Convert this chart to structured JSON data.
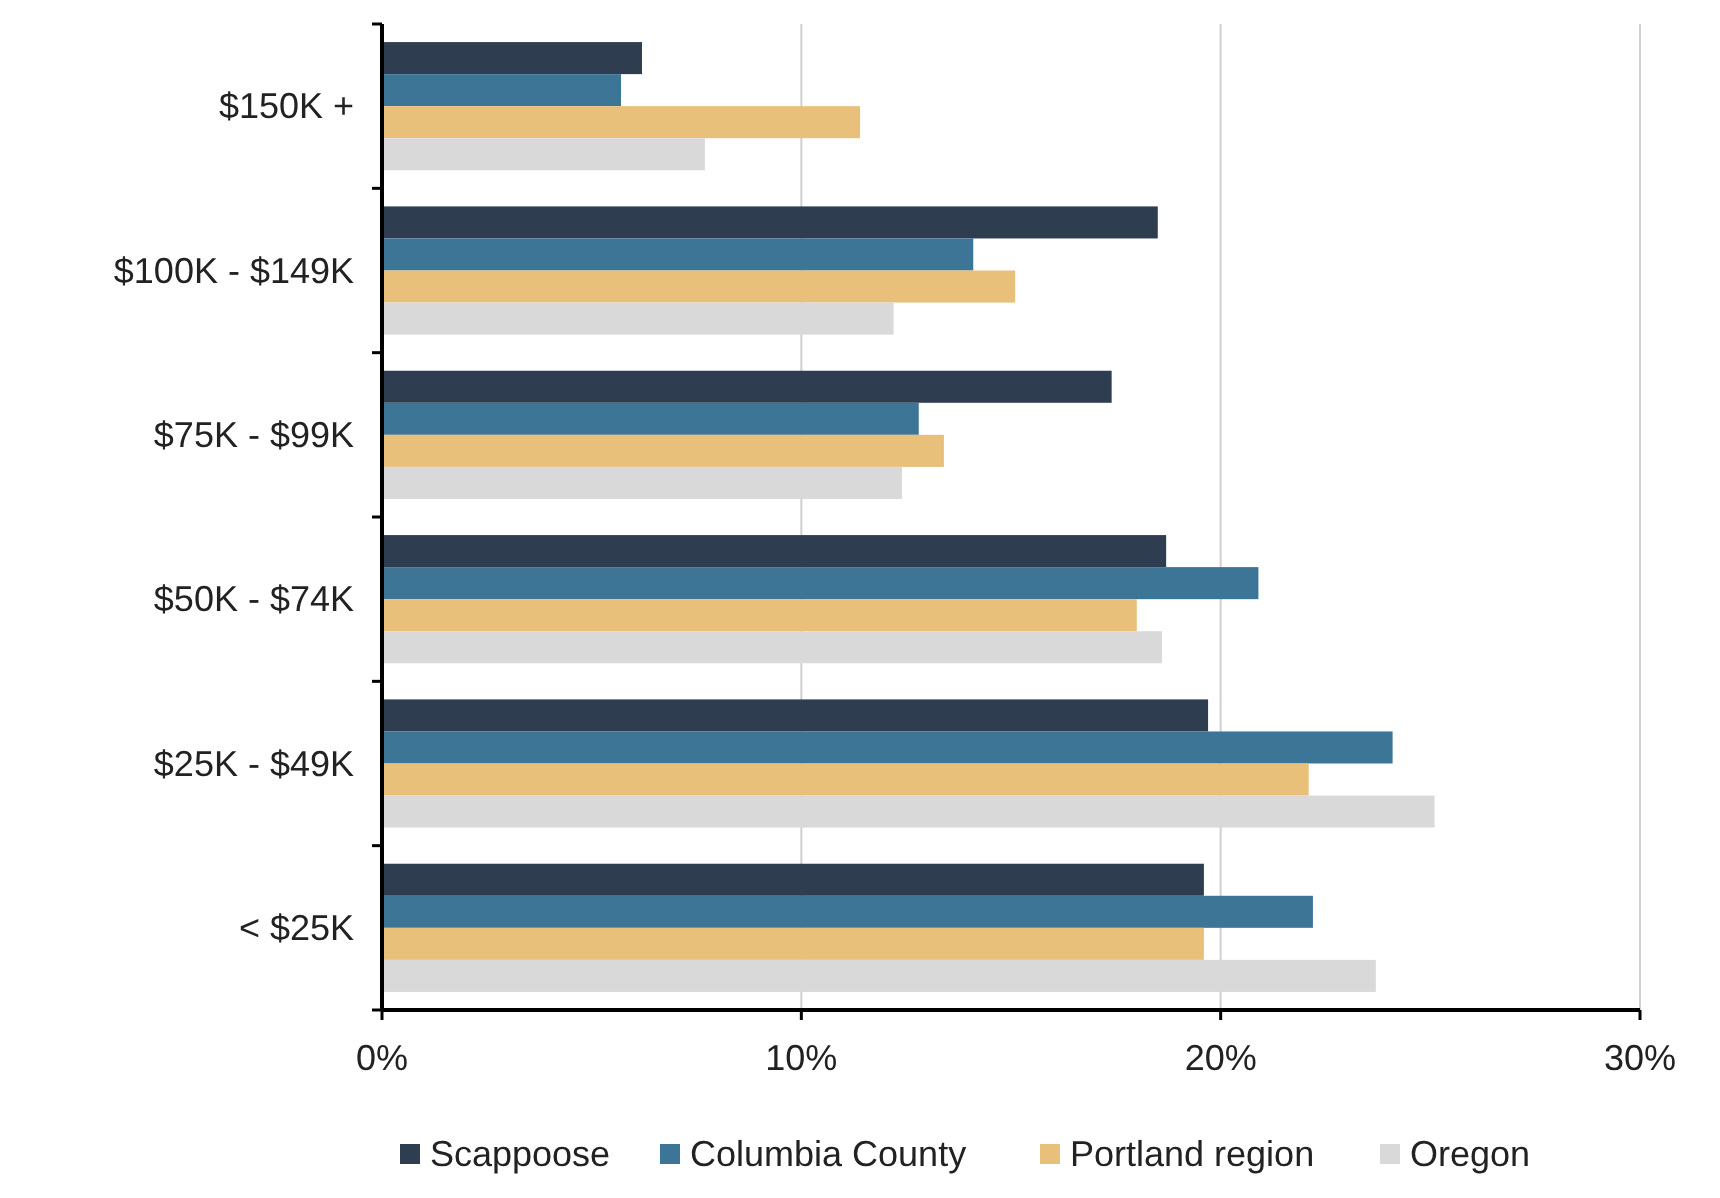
{
  "chart_data": {
    "type": "bar",
    "orientation": "horizontal",
    "categories": [
      "$150K +",
      "$100K - $149K",
      "$75K - $99K",
      "$50K - $74K",
      "$25K - $49K",
      "< $25K"
    ],
    "series": [
      {
        "name": "Scappoose",
        "color": "#2e3d50",
        "values": [
          6.2,
          18.5,
          17.4,
          18.7,
          19.7,
          19.6
        ]
      },
      {
        "name": "Columbia County",
        "color": "#3d7596",
        "values": [
          5.7,
          14.1,
          12.8,
          20.9,
          24.1,
          22.2
        ]
      },
      {
        "name": "Portland region",
        "color": "#e8c07a",
        "values": [
          11.4,
          15.1,
          13.4,
          18.0,
          22.1,
          19.6
        ]
      },
      {
        "name": "Oregon",
        "color": "#d9d9d9",
        "values": [
          7.7,
          12.2,
          12.4,
          18.6,
          25.1,
          23.7
        ]
      }
    ],
    "xlim": [
      0,
      30
    ],
    "xticks": [
      {
        "value": 0,
        "label": "0%"
      },
      {
        "value": 10,
        "label": "10%"
      },
      {
        "value": 20,
        "label": "20%"
      },
      {
        "value": 30,
        "label": "30%"
      }
    ],
    "grid": "x",
    "legend": "bottom"
  }
}
